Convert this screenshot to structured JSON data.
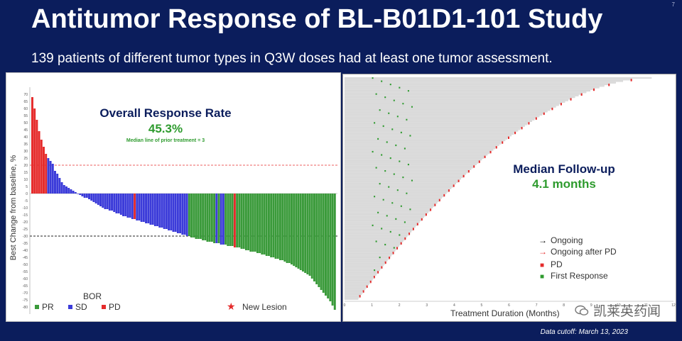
{
  "slide": {
    "title": "Antitumor Response of BL-B01D1-101 Study",
    "page_number": "7",
    "subtitle": "139 patients of different tumor types in Q3W doses had at least one tumor assessment.",
    "data_cutoff": "Data cutoff: March 13, 2023",
    "watermark": "凯莱英药闻"
  },
  "colors": {
    "background": "#0b1d5c",
    "pr": "#3a9a3a",
    "sd": "#3b3bd9",
    "pd": "#e52b2b",
    "accent_green": "#2e9b2e",
    "navy": "#0b1d5c"
  },
  "chart_data": [
    {
      "type": "bar",
      "ylabel": "Best Change from baseline, %",
      "ylim": [
        -85,
        75
      ],
      "yticks": [
        70,
        65,
        60,
        55,
        50,
        45,
        40,
        35,
        30,
        25,
        20,
        15,
        10,
        5,
        0,
        -5,
        -10,
        -15,
        -20,
        -25,
        -30,
        -35,
        -40,
        -45,
        -50,
        -55,
        -60,
        -65,
        -70,
        -75,
        -80
      ],
      "reference_lines": [
        20,
        -30
      ],
      "annotation_title": "Overall Response Rate",
      "annotation_value": "45.3%",
      "annotation_note": "Median line of prior treatment = 3",
      "legend_title": "BOR",
      "legend": [
        "PR",
        "SD",
        "PD"
      ],
      "legend_marker_label": "New Lesion",
      "colors": {
        "PR": "#3a9a3a",
        "SD": "#3b3bd9",
        "PD": "#e52b2b"
      },
      "values": [
        68,
        60,
        52,
        44,
        38,
        33,
        28,
        25,
        23,
        21,
        16,
        14,
        11,
        8,
        6,
        5,
        4,
        3,
        2,
        1,
        0,
        -1,
        -2,
        -3,
        -3,
        -4,
        -5,
        -6,
        -7,
        -8,
        -9,
        -10,
        -11,
        -11,
        -12,
        -12,
        -13,
        -14,
        -14,
        -15,
        -16,
        -16,
        -17,
        -17,
        -18,
        -18,
        -19,
        -19,
        -20,
        -20,
        -21,
        -21,
        -22,
        -22,
        -23,
        -23,
        -24,
        -24,
        -25,
        -25,
        -26,
        -26,
        -27,
        -27,
        -28,
        -28,
        -29,
        -29,
        -30,
        -30,
        -31,
        -31,
        -32,
        -32,
        -32,
        -33,
        -33,
        -34,
        -34,
        -34,
        -35,
        -35,
        -35,
        -36,
        -36,
        -36,
        -37,
        -37,
        -37,
        -38,
        -38,
        -38,
        -39,
        -39,
        -40,
        -40,
        -41,
        -41,
        -41,
        -42,
        -42,
        -43,
        -43,
        -44,
        -44,
        -45,
        -45,
        -46,
        -46,
        -47,
        -47,
        -48,
        -49,
        -49,
        -50,
        -51,
        -52,
        -53,
        -54,
        -55,
        -56,
        -57,
        -58,
        -60,
        -62,
        -64,
        -66,
        -68,
        -70,
        -72,
        -74,
        -76,
        -79,
        -82
      ],
      "categories_bor": [
        "PD",
        "PD",
        "PD",
        "PD",
        "PD",
        "PD",
        "PD",
        "SD",
        "SD",
        "SD",
        "SD",
        "SD",
        "SD",
        "SD",
        "SD",
        "SD",
        "SD",
        "SD",
        "SD",
        "SD",
        "SD",
        "SD",
        "SD",
        "SD",
        "SD",
        "SD",
        "SD",
        "SD",
        "SD",
        "SD",
        "SD",
        "SD",
        "SD",
        "SD",
        "SD",
        "SD",
        "SD",
        "SD",
        "SD",
        "SD",
        "SD",
        "SD",
        "SD",
        "SD",
        "SD",
        "PD",
        "SD",
        "SD",
        "SD",
        "SD",
        "SD",
        "SD",
        "SD",
        "SD",
        "SD",
        "SD",
        "SD",
        "SD",
        "SD",
        "SD",
        "SD",
        "SD",
        "SD",
        "SD",
        "SD",
        "SD",
        "SD",
        "SD",
        "SD",
        "PR",
        "PR",
        "PR",
        "PR",
        "PR",
        "PR",
        "PR",
        "PR",
        "PR",
        "PR",
        "PR",
        "PR",
        "SD",
        "PR",
        "SD",
        "SD",
        "PR",
        "PR",
        "PR",
        "PR",
        "PD",
        "PR",
        "PR",
        "PR",
        "PR",
        "PR",
        "PR",
        "PR",
        "PR",
        "PR",
        "PR",
        "PR",
        "PR",
        "PR",
        "PR",
        "PR",
        "PR",
        "PR",
        "PR",
        "PR",
        "PR",
        "PR",
        "PR",
        "PR",
        "PR",
        "PR",
        "PR",
        "PR",
        "PR",
        "PR",
        "PR",
        "PR",
        "PR",
        "PR",
        "PR",
        "PR",
        "PR",
        "PR",
        "PR",
        "PR",
        "PR",
        "PR",
        "PR",
        "PR",
        "PR",
        "PR",
        "PR",
        "PR",
        "PR",
        "PR"
      ]
    },
    {
      "type": "swimmer",
      "xlabel": "Treatment Duration (Months)",
      "xlim": [
        0,
        12
      ],
      "xticks": [
        0,
        1,
        2,
        3,
        4,
        5,
        6,
        7,
        8,
        9,
        10,
        11,
        12
      ],
      "annotation_title": "Median Follow-up",
      "annotation_value": "4.1 months",
      "legend": [
        {
          "label": "Ongoing",
          "symbol": "→",
          "color": "#000000"
        },
        {
          "label": "Ongoing after PD",
          "symbol": "→",
          "color": "#e52b2b"
        },
        {
          "label": "PD",
          "symbol": "■",
          "color": "#e52b2b"
        },
        {
          "label": "First Response",
          "symbol": "■",
          "color": "#2e9b2e"
        }
      ],
      "n_patients": 139
    }
  ]
}
